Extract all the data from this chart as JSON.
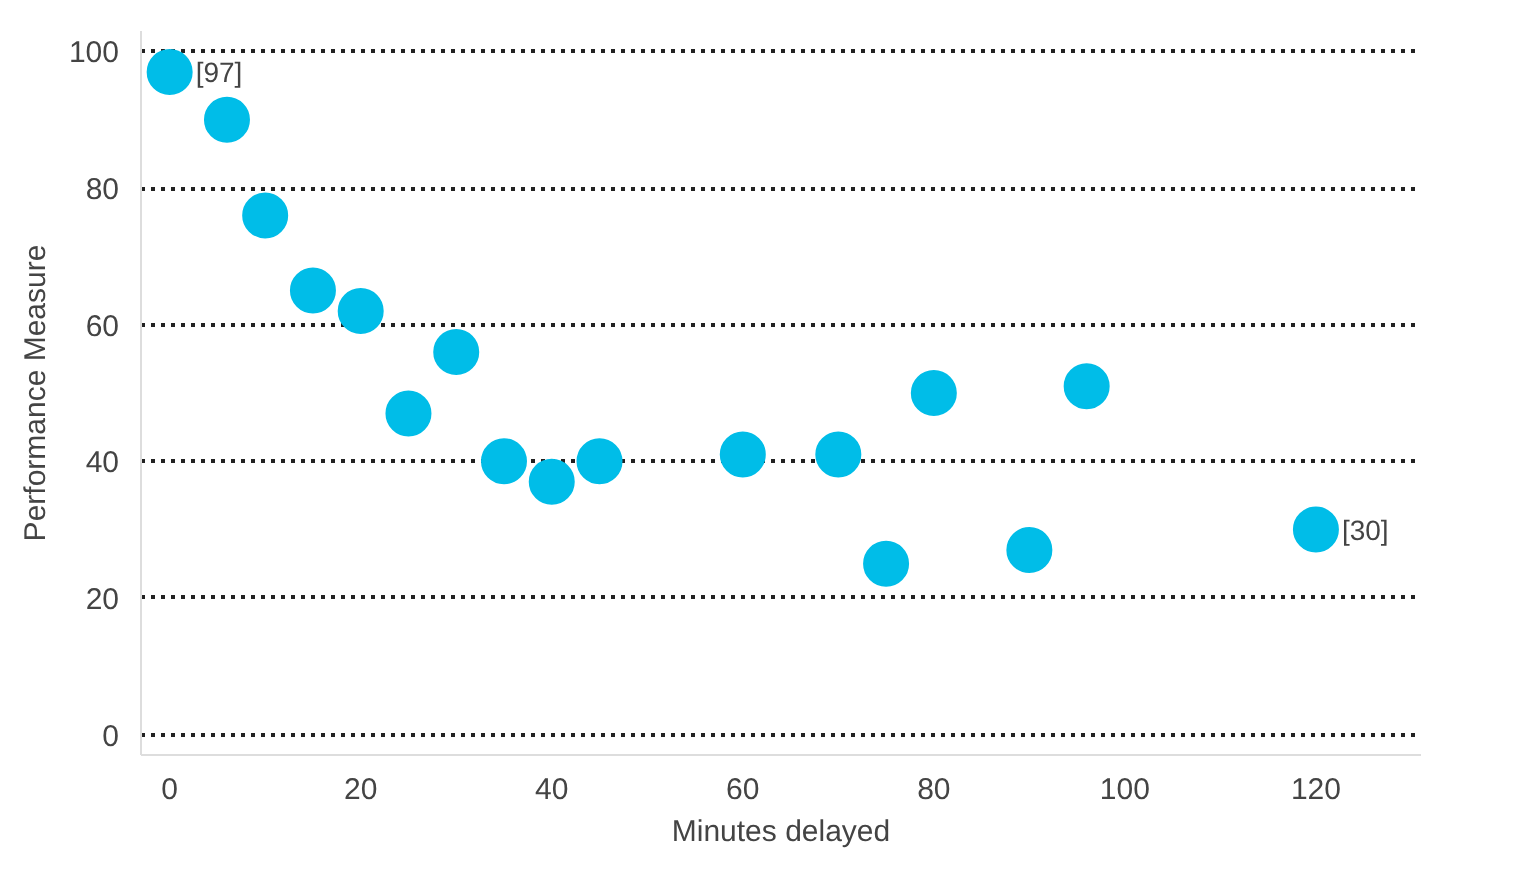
{
  "chart_data": {
    "type": "scatter",
    "xlabel": "Minutes delayed",
    "ylabel": "Performance Measure",
    "x": [
      0,
      6,
      10,
      15,
      20,
      25,
      30,
      35,
      40,
      45,
      60,
      70,
      75,
      80,
      90,
      96,
      120
    ],
    "series": [
      {
        "color": "#00bde8",
        "values": [
          97,
          90,
          76,
          65,
          62,
          47,
          56,
          40,
          37,
          40,
          41,
          41,
          25,
          50,
          27,
          51,
          30
        ]
      }
    ],
    "annotations": [
      {
        "text": "[97]",
        "x": 0,
        "y": 97
      },
      {
        "text": "[30]",
        "x": 120,
        "y": 30
      }
    ],
    "xlim": [
      -3,
      131
    ],
    "ylim": [
      -3,
      103
    ],
    "xticks": [
      0,
      20,
      40,
      60,
      80,
      100,
      120
    ],
    "yticks": [
      0,
      20,
      40,
      60,
      80,
      100
    ],
    "grid": "y",
    "marker": "circle"
  }
}
